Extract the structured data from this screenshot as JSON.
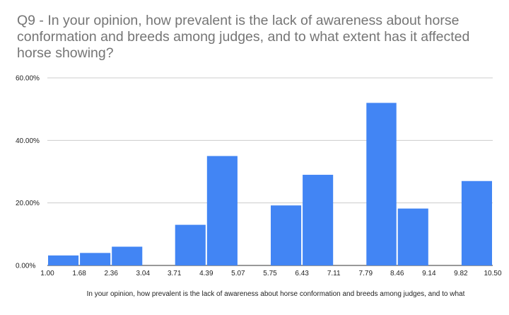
{
  "chart_data": {
    "type": "bar",
    "title": "Q9 - In your opinion, how prevalent is the lack of awareness about horse conformation and breeds among judges, and to what extent has it affected horse showing?",
    "xlabel": "In your opinion, how prevalent is the lack of awareness about horse conformation and breeds among judges, and to what",
    "ylabel": "",
    "x_ticks": [
      "1.00",
      "1.68",
      "2.36",
      "3.04",
      "3.71",
      "4.39",
      "5.07",
      "5.75",
      "6.43",
      "7.11",
      "7.79",
      "8.46",
      "9.14",
      "9.82",
      "10.50"
    ],
    "y_ticks": [
      "0.00%",
      "20.00%",
      "40.00%",
      "60.00%"
    ],
    "ylim": [
      0,
      60
    ],
    "xlim": [
      1.0,
      10.5
    ],
    "grid": true,
    "bar_color": "#4285f4",
    "bars": [
      {
        "x0": 1.0,
        "x1": 1.68,
        "value": 3.2
      },
      {
        "x0": 1.68,
        "x1": 2.36,
        "value": 4.0
      },
      {
        "x0": 2.36,
        "x1": 3.04,
        "value": 6.0
      },
      {
        "x0": 3.04,
        "x1": 3.71,
        "value": 0
      },
      {
        "x0": 3.71,
        "x1": 4.39,
        "value": 13.0
      },
      {
        "x0": 4.39,
        "x1": 5.07,
        "value": 35.0
      },
      {
        "x0": 5.07,
        "x1": 5.75,
        "value": 0
      },
      {
        "x0": 5.75,
        "x1": 6.43,
        "value": 19.2
      },
      {
        "x0": 6.43,
        "x1": 7.11,
        "value": 29.0
      },
      {
        "x0": 7.11,
        "x1": 7.79,
        "value": 0
      },
      {
        "x0": 7.79,
        "x1": 8.46,
        "value": 52.0
      },
      {
        "x0": 8.46,
        "x1": 9.14,
        "value": 18.2
      },
      {
        "x0": 9.14,
        "x1": 9.82,
        "value": 0
      },
      {
        "x0": 9.82,
        "x1": 10.5,
        "value": 27.0
      }
    ]
  }
}
